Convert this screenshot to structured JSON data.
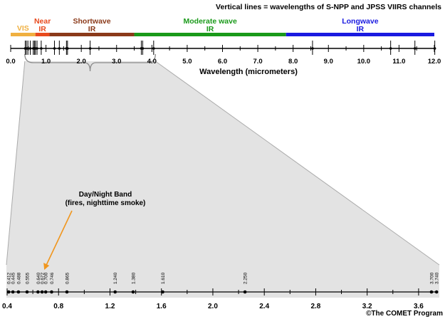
{
  "header": {
    "note": "Vertical lines = wavelengths of S-NPP and JPSS VIIRS channels"
  },
  "bands": [
    {
      "line1": "VIS",
      "line2": "",
      "color": "#f0b040",
      "start": 0.0,
      "end": 0.7
    },
    {
      "line1": "Near",
      "line2": "IR",
      "color": "#e84a1e",
      "start": 0.7,
      "end": 1.1
    },
    {
      "line1": "Shortwave",
      "line2": "IR",
      "color": "#8b3a1a",
      "start": 1.1,
      "end": 3.5
    },
    {
      "line1": "Moderate wave",
      "line2": "IR",
      "color": "#1a9a1a",
      "start": 3.5,
      "end": 7.8
    },
    {
      "line1": "Longwave",
      "line2": "IR",
      "color": "#1a1ae0",
      "start": 7.8,
      "end": 12.0
    }
  ],
  "top_axis": {
    "min": 0.0,
    "max": 12.0,
    "tick_labels": [
      "0.0",
      "1.0",
      "2.0",
      "3.0",
      "4.0",
      "5.0",
      "6.0",
      "7.0",
      "8.0",
      "9.0",
      "10.0",
      "11.0",
      "12.0"
    ],
    "xlabel": "Wavelength (micrometers)",
    "channels": [
      0.412,
      0.445,
      0.488,
      0.555,
      0.64,
      0.672,
      0.7,
      0.746,
      0.865,
      1.24,
      1.378,
      1.58,
      1.61,
      2.25,
      3.7,
      3.74,
      4.05,
      8.55,
      10.763,
      11.45,
      12.013
    ]
  },
  "bottom_axis": {
    "min": 0.4,
    "max": 3.75,
    "tick_labels": [
      "0.4",
      "0.8",
      "1.2",
      "1.6",
      "2.0",
      "2.4",
      "2.8",
      "3.2",
      "3.6"
    ],
    "channel_values": [
      0.412,
      0.445,
      0.488,
      0.555,
      0.64,
      0.672,
      0.7,
      0.746,
      0.865,
      1.24,
      1.38,
      1.61,
      2.25,
      3.7,
      3.74
    ],
    "channel_labels": [
      "0.412",
      "0.445",
      "0.488",
      "0.555",
      "0.640",
      "0.672",
      "0.700",
      "0.746",
      "0.865",
      "1.240",
      "1.380",
      "1.610",
      "2.250",
      "3.700",
      "3.740"
    ]
  },
  "annotation": {
    "line1": "Day/Night Band",
    "line2": "(fires, nighttime smoke)",
    "arrow_color": "#f0961e"
  },
  "credit": "©The COMET Program",
  "colors": {
    "zoom_fill": "#e3e3e3",
    "zoom_stroke": "#aaaaaa"
  }
}
